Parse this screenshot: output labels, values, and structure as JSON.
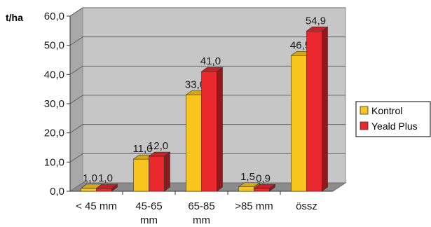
{
  "chart_data": {
    "type": "bar",
    "ylabel": "t/ha",
    "ylim": [
      0,
      60
    ],
    "ytick_step": 10,
    "ytick_labels": [
      "0,0",
      "10,0",
      "20,0",
      "30,0",
      "40,0",
      "50,0",
      "60,0"
    ],
    "categories": [
      "< 45 mm",
      "45-65 mm",
      "65-85 mm",
      ">85 mm",
      "össz"
    ],
    "category_lines": [
      [
        "< 45 mm"
      ],
      [
        "45-65",
        "mm"
      ],
      [
        "65-85",
        "mm"
      ],
      [
        ">85 mm"
      ],
      [
        "össz"
      ]
    ],
    "series": [
      {
        "name": "Kontrol",
        "color": "#f7c51e",
        "values": [
          1.0,
          11.0,
          33.0,
          1.5,
          46.5
        ],
        "labels": [
          "1,0",
          "11,0",
          "33,0",
          "1,5",
          "46,5"
        ]
      },
      {
        "name": "Yeald Plus",
        "color": "#e8282c",
        "values": [
          1.0,
          12.0,
          41.0,
          0.9,
          54.9
        ],
        "labels": [
          "1,0",
          "12,0",
          "41,0",
          "0,9",
          "54,9"
        ]
      }
    ],
    "legend_position": "right",
    "grid": true,
    "three_d": true
  }
}
